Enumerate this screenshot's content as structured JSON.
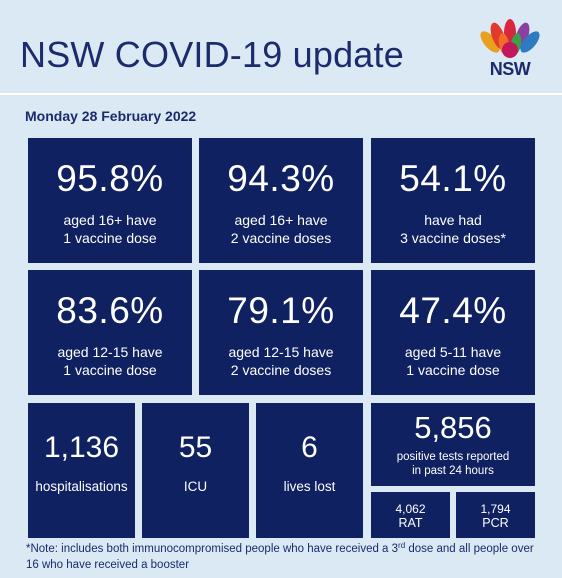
{
  "header": {
    "title": "NSW COVID-19 update",
    "logo_text": "NSW"
  },
  "date": "Monday 28 February 2022",
  "vaccination": [
    {
      "value": "95.8%",
      "line1": "aged 16+ have",
      "line2": "1 vaccine dose"
    },
    {
      "value": "94.3%",
      "line1": "aged 16+ have",
      "line2": "2 vaccine doses"
    },
    {
      "value": "54.1%",
      "line1": "have had",
      "line2": "3 vaccine doses*"
    },
    {
      "value": "83.6%",
      "line1": "aged 12-15 have",
      "line2": "1 vaccine dose"
    },
    {
      "value": "79.1%",
      "line1": "aged 12-15 have",
      "line2": "2 vaccine doses"
    },
    {
      "value": "47.4%",
      "line1": "aged 5-11 have",
      "line2": "1 vaccine dose"
    }
  ],
  "stats": {
    "hospitalisations": {
      "value": "1,136",
      "label": "hospitalisations"
    },
    "icu": {
      "value": "55",
      "label": "ICU"
    },
    "deaths": {
      "value": "6",
      "label": "lives lost"
    },
    "tests": {
      "value": "5,856",
      "line1": "positive tests reported",
      "line2": "in past 24 hours"
    },
    "rat": {
      "value": "4,062",
      "label": "RAT"
    },
    "pcr": {
      "value": "1,794",
      "label": "PCR"
    }
  },
  "note": {
    "part1": "*Note: includes both immunocompromised people who have received a 3",
    "sup": "rd",
    "part2": " dose and all people over 16 who have received a booster"
  },
  "colors": {
    "tile": "#102161",
    "background": "#dbe9f5",
    "heading": "#1b2b6b"
  }
}
